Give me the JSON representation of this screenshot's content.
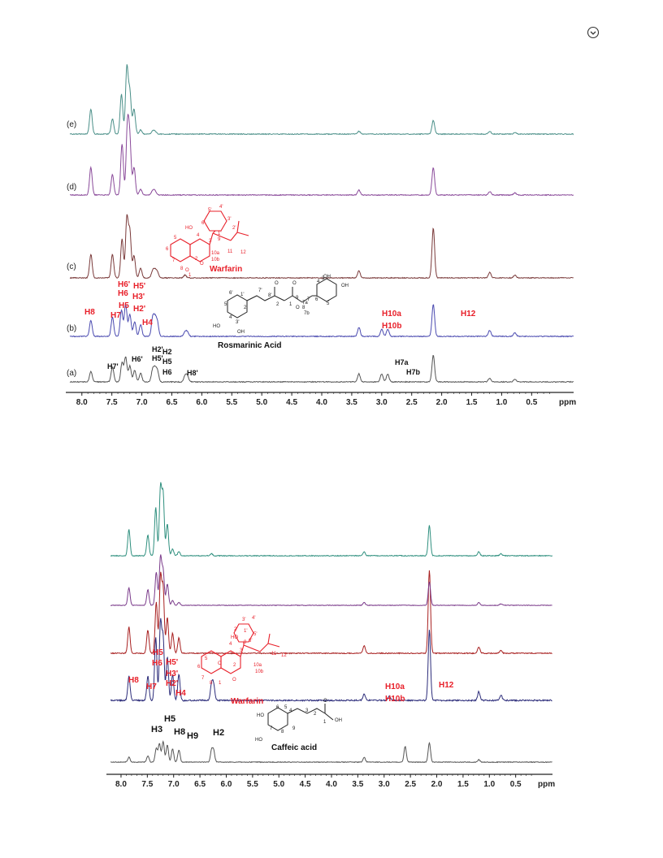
{
  "page": {
    "icon": "circle-download-icon"
  },
  "chart_data": [
    {
      "type": "line",
      "xlabel": "ppm",
      "xlim": [
        8.2,
        -0.2
      ],
      "xticks": [
        "8.0",
        "7.5",
        "7.0",
        "6.5",
        "6.0",
        "5.5",
        "5.0",
        "4.5",
        "4.0",
        "3.5",
        "3.0",
        "2.5",
        "2.0",
        "1.5",
        "1.0",
        "0.5"
      ],
      "series": [
        {
          "name": "(a)",
          "color": "#555555",
          "peaks": [
            [
              7.85,
              14
            ],
            [
              7.49,
              20
            ],
            [
              7.33,
              26
            ],
            [
              7.27,
              34
            ],
            [
              7.2,
              22
            ],
            [
              7.12,
              16
            ],
            [
              7.02,
              12
            ],
            [
              6.82,
              16
            ],
            [
              6.78,
              16
            ],
            [
              6.74,
              14
            ],
            [
              6.28,
              8
            ],
            [
              6.24,
              8
            ],
            [
              3.38,
              11
            ],
            [
              3.0,
              11
            ],
            [
              2.9,
              11
            ],
            [
              2.14,
              36
            ],
            [
              1.2,
              5
            ],
            [
              0.78,
              4
            ]
          ]
        },
        {
          "name": "(b)",
          "color": "#4a4ab0",
          "peaks": [
            [
              7.85,
              22
            ],
            [
              7.49,
              26
            ],
            [
              7.34,
              36
            ],
            [
              7.27,
              44
            ],
            [
              7.2,
              30
            ],
            [
              7.12,
              20
            ],
            [
              7.02,
              16
            ],
            [
              6.82,
              24
            ],
            [
              6.78,
              22
            ],
            [
              6.74,
              18
            ],
            [
              6.28,
              6
            ],
            [
              6.24,
              6
            ],
            [
              3.38,
              12
            ],
            [
              3.0,
              10
            ],
            [
              2.9,
              10
            ],
            [
              2.14,
              44
            ],
            [
              1.2,
              8
            ],
            [
              0.78,
              5
            ]
          ]
        },
        {
          "name": "(c)",
          "color": "#7a3a3a",
          "peaks": [
            [
              7.85,
              34
            ],
            [
              7.49,
              34
            ],
            [
              7.33,
              56
            ],
            [
              7.25,
              86
            ],
            [
              7.2,
              66
            ],
            [
              7.13,
              32
            ],
            [
              7.02,
              14
            ],
            [
              6.82,
              10
            ],
            [
              6.78,
              10
            ],
            [
              6.74,
              8
            ],
            [
              6.28,
              4
            ],
            [
              3.38,
              10
            ],
            [
              2.14,
              72
            ],
            [
              1.2,
              8
            ],
            [
              0.78,
              4
            ]
          ]
        },
        {
          "name": "(d)",
          "color": "#8a4a9a",
          "peaks": [
            [
              7.85,
              40
            ],
            [
              7.49,
              30
            ],
            [
              7.33,
              74
            ],
            [
              7.24,
              98
            ],
            [
              7.2,
              74
            ],
            [
              7.13,
              40
            ],
            [
              7.02,
              8
            ],
            [
              6.82,
              6
            ],
            [
              6.78,
              6
            ],
            [
              3.38,
              7
            ],
            [
              2.14,
              40
            ],
            [
              1.2,
              5
            ],
            [
              0.78,
              3
            ]
          ]
        },
        {
          "name": "(e)",
          "color": "#4a8f88",
          "peaks": [
            [
              7.85,
              36
            ],
            [
              7.49,
              22
            ],
            [
              7.34,
              58
            ],
            [
              7.25,
              96
            ],
            [
              7.2,
              60
            ],
            [
              7.13,
              36
            ],
            [
              7.02,
              6
            ],
            [
              6.82,
              4
            ],
            [
              6.78,
              4
            ],
            [
              3.38,
              4
            ],
            [
              2.14,
              20
            ],
            [
              1.2,
              4
            ],
            [
              0.78,
              2
            ]
          ]
        }
      ]
    },
    {
      "type": "line",
      "xlabel": "ppm",
      "xlim": [
        8.2,
        -0.2
      ],
      "xticks": [
        "8.0",
        "7.5",
        "7.0",
        "6.5",
        "6.0",
        "5.5",
        "5.0",
        "4.5",
        "4.0",
        "3.5",
        "3.0",
        "2.5",
        "2.0",
        "1.5",
        "1.0",
        "0.5"
      ],
      "series": [
        {
          "name": "",
          "color": "#555555",
          "peaks": [
            [
              7.85,
              8
            ],
            [
              7.49,
              10
            ],
            [
              7.33,
              22
            ],
            [
              7.27,
              30
            ],
            [
              7.2,
              34
            ],
            [
              7.12,
              28
            ],
            [
              7.02,
              22
            ],
            [
              6.9,
              20
            ],
            [
              6.28,
              18
            ],
            [
              6.24,
              18
            ],
            [
              3.38,
              8
            ],
            [
              2.6,
              26
            ],
            [
              2.14,
              32
            ],
            [
              1.2,
              4
            ]
          ]
        },
        {
          "name": "",
          "color": "#2c2c7a",
          "peaks": [
            [
              7.85,
              22
            ],
            [
              7.49,
              22
            ],
            [
              7.34,
              58
            ],
            [
              7.25,
              70
            ],
            [
              7.2,
              56
            ],
            [
              7.12,
              40
            ],
            [
              7.02,
              24
            ],
            [
              6.9,
              24
            ],
            [
              6.28,
              14
            ],
            [
              6.24,
              14
            ],
            [
              3.38,
              6
            ],
            [
              2.9,
              4
            ],
            [
              2.14,
              64
            ],
            [
              1.2,
              8
            ],
            [
              0.78,
              5
            ]
          ]
        },
        {
          "name": "",
          "color": "#a82020",
          "peaks": [
            [
              7.85,
              34
            ],
            [
              7.49,
              30
            ],
            [
              7.33,
              66
            ],
            [
              7.25,
              98
            ],
            [
              7.2,
              82
            ],
            [
              7.12,
              46
            ],
            [
              7.02,
              26
            ],
            [
              6.9,
              20
            ],
            [
              3.38,
              10
            ],
            [
              2.14,
              108
            ],
            [
              1.2,
              8
            ],
            [
              0.78,
              4
            ]
          ]
        },
        {
          "name": "",
          "color": "#7a3a8a",
          "peaks": [
            [
              7.85,
              36
            ],
            [
              7.49,
              32
            ],
            [
              7.33,
              68
            ],
            [
              7.25,
              98
            ],
            [
              7.2,
              70
            ],
            [
              7.12,
              44
            ],
            [
              7.02,
              10
            ],
            [
              6.9,
              6
            ],
            [
              3.38,
              6
            ],
            [
              2.14,
              48
            ],
            [
              1.2,
              6
            ],
            [
              0.78,
              3
            ]
          ]
        },
        {
          "name": "",
          "color": "#2e8f7e",
          "peaks": [
            [
              7.85,
              38
            ],
            [
              7.49,
              30
            ],
            [
              7.34,
              70
            ],
            [
              7.25,
              98
            ],
            [
              7.2,
              88
            ],
            [
              7.12,
              46
            ],
            [
              7.02,
              10
            ],
            [
              6.9,
              6
            ],
            [
              6.28,
              3
            ],
            [
              3.38,
              6
            ],
            [
              2.14,
              44
            ],
            [
              1.2,
              6
            ],
            [
              0.78,
              3
            ]
          ]
        }
      ]
    }
  ],
  "annotations": {
    "top": {
      "warfarin": {
        "name": "Warfarin",
        "labels": [
          "HO",
          "4",
          "3",
          "9",
          "10a",
          "10b",
          "11",
          "12",
          "2",
          "O",
          "1",
          "O",
          "5",
          "6",
          "7",
          "8",
          "1'",
          "2'",
          "3'",
          "4'",
          "5'",
          "6'"
        ]
      },
      "rosmarinic": {
        "name": "Rosmarinic Acid",
        "labels": [
          "HO",
          "OH",
          "OH",
          "OH",
          "O",
          "O",
          "O",
          "1",
          "2",
          "3",
          "4",
          "5",
          "6",
          "7",
          "8",
          "9",
          "1'",
          "2'",
          "3'",
          "4'",
          "5'",
          "6'",
          "7'",
          "8'",
          "7a",
          "7b"
        ]
      },
      "trace_b_red": [
        "H8",
        "H7",
        "H6",
        "H5",
        "H6'",
        "H5'",
        "H3'",
        "H2'",
        "H4",
        "H10a",
        "H10b",
        "H12"
      ],
      "trace_a_black": [
        "H7'",
        "H6'",
        "H2'",
        "H5'",
        "H2",
        "H5",
        "H6",
        "H8'",
        "H7a",
        "H7b"
      ]
    },
    "bottom": {
      "warfarin": {
        "name": "Warfarin",
        "labels": [
          "HO",
          "O",
          "O",
          "1",
          "2",
          "3",
          "4",
          "5",
          "6",
          "7",
          "8",
          "9",
          "10a",
          "10b",
          "11",
          "12",
          "1'",
          "2'",
          "3'",
          "4'",
          "5'",
          "6'"
        ]
      },
      "caffeic": {
        "name": "Caffeic acid",
        "labels": [
          "HO",
          "HO",
          "OH",
          "O",
          "1",
          "2",
          "3",
          "4",
          "5",
          "6",
          "7",
          "8",
          "9"
        ]
      },
      "trace_b_red": [
        "H8",
        "H7",
        "H6",
        "H5",
        "H5'",
        "H3'",
        "H2'",
        "H4",
        "H10a",
        "H10b",
        "H12"
      ],
      "trace_a_black": [
        "H3",
        "H5",
        "H8",
        "H9",
        "H2"
      ]
    }
  }
}
